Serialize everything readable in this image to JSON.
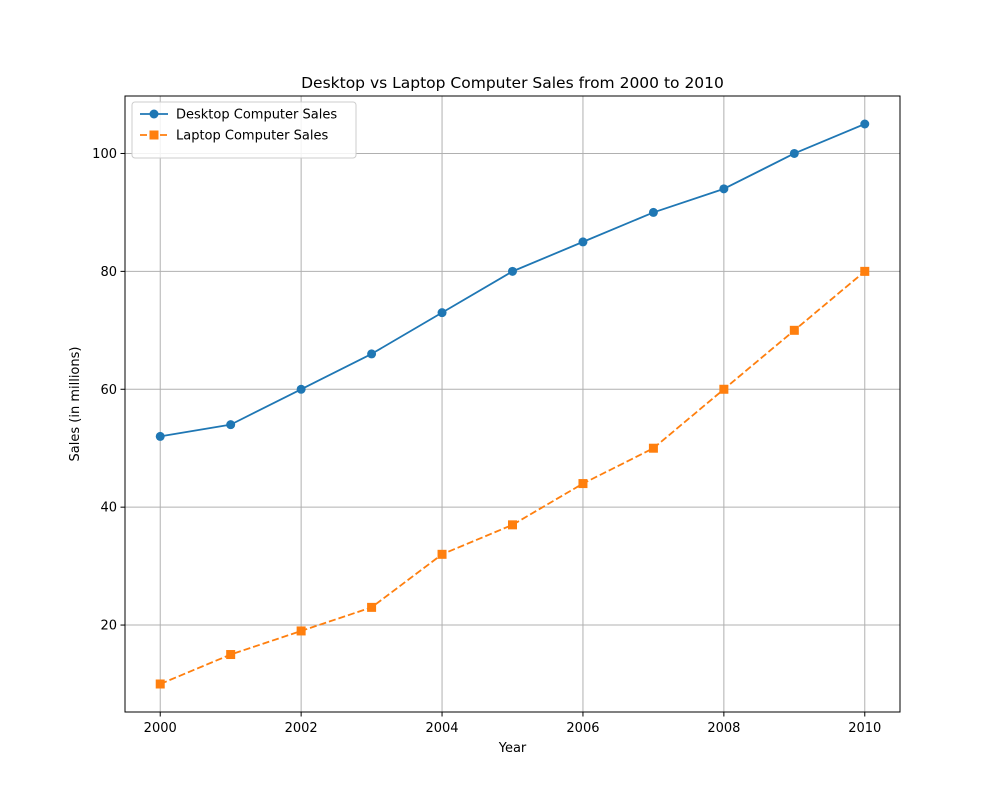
{
  "chart_data": {
    "type": "line",
    "title": "Desktop vs Laptop Computer Sales from 2000 to 2010",
    "xlabel": "Year",
    "ylabel": "Sales (in millions)",
    "x": [
      2000,
      2001,
      2002,
      2003,
      2004,
      2005,
      2006,
      2007,
      2008,
      2009,
      2010
    ],
    "xlim": [
      1999.5,
      2010.5
    ],
    "ylim": [
      5.25,
      109.75
    ],
    "xticks": [
      2000,
      2002,
      2004,
      2006,
      2008,
      2010
    ],
    "yticks": [
      20,
      40,
      60,
      80,
      100
    ],
    "grid": true,
    "legend_position": "top-left",
    "series": [
      {
        "name": "Desktop Computer Sales",
        "values": [
          52,
          54,
          60,
          66,
          73,
          80,
          85,
          90,
          94,
          100,
          105
        ],
        "color": "#1f77b4",
        "marker": "circle",
        "linestyle": "solid"
      },
      {
        "name": "Laptop Computer Sales",
        "values": [
          10,
          15,
          19,
          23,
          32,
          37,
          44,
          50,
          60,
          70,
          80
        ],
        "color": "#ff7f0e",
        "marker": "square",
        "linestyle": "dashed"
      }
    ]
  }
}
